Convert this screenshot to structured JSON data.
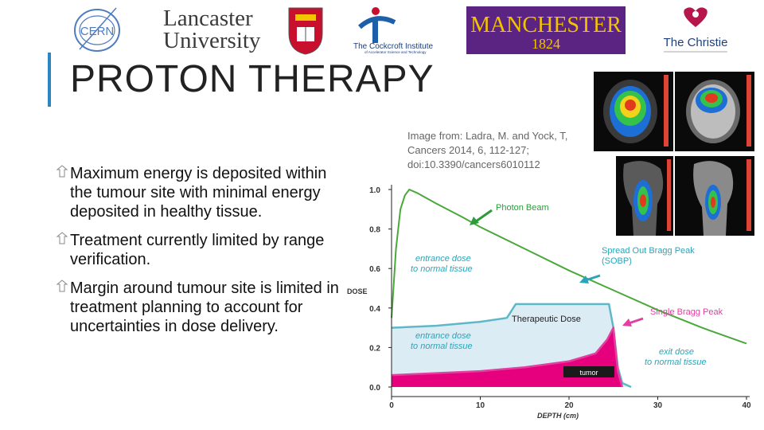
{
  "logos": {
    "cern": "CERN",
    "lancaster_line1": "Lancaster",
    "lancaster_line2": "University",
    "cockcroft_line1": "The Cockcroft Institute",
    "cockcroft_line2": "of Accelerator Science and Technology",
    "manchester_line1": "MANCHESTER",
    "manchester_line2": "1824",
    "christie": "The Christie"
  },
  "slide": {
    "title": "PROTON THERAPY",
    "bullets": [
      "Maximum energy is deposited within the tumour site with minimal energy deposited in healthy tissue.",
      "Treatment currently limited by range verification.",
      "Margin around tumour site is limited in treatment planning to account for uncertainties in dose delivery."
    ],
    "caption": "Image from: Ladra, M. and Yock, T, Cancers 2014, 6, 112-127; doi:10.3390/cancers6010112"
  },
  "colors": {
    "accent_bar": "#2e86c1",
    "manchester_purple": "#5b2483",
    "photon": "#4aa83a",
    "sobp": "#5fb8c8",
    "bragg": "#e23fa0",
    "tumor_fill": "#e6007e",
    "annotation_teal": "#2aa5b8"
  },
  "chart_data": {
    "type": "line",
    "xlabel": "DEPTH (cm)",
    "ylabel": "DOSE",
    "xlim": [
      0,
      40
    ],
    "ylim": [
      0,
      1.0
    ],
    "x_ticks": [
      "0",
      "10",
      "20",
      "30",
      "40"
    ],
    "y_ticks": [
      "0.0",
      "0.2",
      "0.4",
      "0.6",
      "0.8",
      "1.0"
    ],
    "series": [
      {
        "name": "Photon Beam",
        "color": "#4aa83a",
        "x": [
          0,
          0.5,
          1,
          1.5,
          2,
          3,
          5,
          8,
          10,
          15,
          20,
          25,
          30,
          35,
          40
        ],
        "y": [
          0.35,
          0.7,
          0.9,
          0.97,
          1.0,
          0.98,
          0.93,
          0.86,
          0.81,
          0.7,
          0.59,
          0.49,
          0.39,
          0.3,
          0.22
        ]
      },
      {
        "name": "Spread Out Bragg Peak (SOBP)",
        "color": "#5fb8c8",
        "x": [
          0,
          5,
          10,
          13,
          14,
          20,
          24.5,
          25,
          25.5,
          26,
          27
        ],
        "y": [
          0.3,
          0.31,
          0.33,
          0.35,
          0.42,
          0.42,
          0.42,
          0.3,
          0.1,
          0.02,
          0
        ]
      },
      {
        "name": "Single Bragg Peak",
        "color": "#e23fa0",
        "x": [
          0,
          5,
          10,
          15,
          20,
          23,
          24.3,
          25,
          25.5,
          26
        ],
        "y": [
          0.06,
          0.07,
          0.08,
          0.1,
          0.13,
          0.17,
          0.24,
          0.3,
          0.08,
          0
        ]
      }
    ],
    "annotations": {
      "photon_beam": "Photon Beam",
      "sobp_line1": "Spread Out Bragg Peak",
      "sobp_line2": "(SOBP)",
      "single_bragg": "Single Bragg Peak",
      "entrance_upper_line1": "entrance dose",
      "entrance_upper_line2": "to normal tissue",
      "therapeutic": "Therapeutic Dose",
      "entrance_lower_line1": "entrance dose",
      "entrance_lower_line2": "to normal tissue",
      "exit_line1": "exit dose",
      "exit_line2": "to normal tissue",
      "tumor": "tumor"
    }
  }
}
